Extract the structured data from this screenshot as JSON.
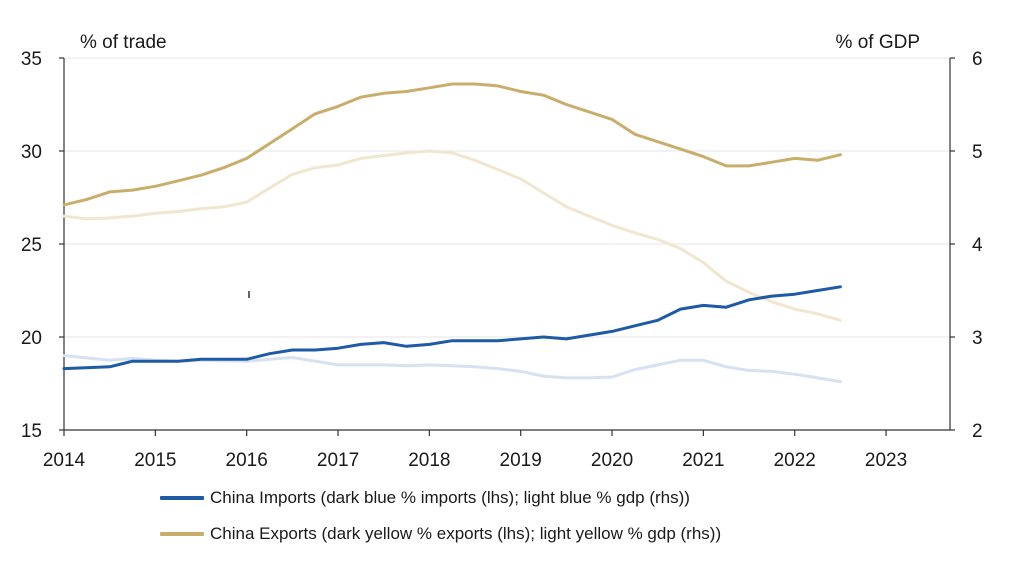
{
  "chart_data": {
    "type": "line",
    "ylabel_left": "% of trade",
    "ylabel_right": "% of GDP",
    "x_ticks": [
      "2014",
      "2015",
      "2016",
      "2017",
      "2018",
      "2019",
      "2020",
      "2021",
      "2022",
      "2023"
    ],
    "x_range": [
      2014,
      2023.7
    ],
    "ylim_left": [
      15,
      35
    ],
    "yticks_left": [
      "15",
      "20",
      "25",
      "30",
      "35"
    ],
    "ylim_right": [
      2,
      6
    ],
    "yticks_right": [
      "2",
      "3",
      "4",
      "5",
      "6"
    ],
    "grid": true,
    "series": [
      {
        "name": "China Imports % imports (lhs)",
        "axis": "left",
        "color": "#1f5aa6",
        "x": [
          2014.0,
          2014.5,
          2014.75,
          2015.0,
          2015.25,
          2015.5,
          2016.0,
          2016.25,
          2016.5,
          2016.75,
          2017.0,
          2017.25,
          2017.5,
          2017.75,
          2018.0,
          2018.25,
          2018.5,
          2018.75,
          2019.0,
          2019.25,
          2019.5,
          2019.75,
          2020.0,
          2020.25,
          2020.5,
          2020.75,
          2021.0,
          2021.25,
          2021.5,
          2021.75,
          2022.0,
          2022.25,
          2022.5
        ],
        "y": [
          18.3,
          18.4,
          18.7,
          18.7,
          18.7,
          18.8,
          18.8,
          19.1,
          19.3,
          19.3,
          19.4,
          19.6,
          19.7,
          19.5,
          19.6,
          19.8,
          19.8,
          19.8,
          19.9,
          20.0,
          19.9,
          20.1,
          20.3,
          20.6,
          20.9,
          21.5,
          21.7,
          21.6,
          22.0,
          22.2,
          22.3,
          22.5,
          22.7
        ]
      },
      {
        "name": "China Imports % gdp (rhs)",
        "axis": "right",
        "color": "#d6e1f2",
        "x": [
          2014.0,
          2014.5,
          2014.75,
          2015.0,
          2015.25,
          2015.5,
          2016.0,
          2016.25,
          2016.5,
          2016.75,
          2017.0,
          2017.25,
          2017.5,
          2017.75,
          2018.0,
          2018.25,
          2018.5,
          2018.75,
          2019.0,
          2019.25,
          2019.5,
          2019.75,
          2020.0,
          2020.25,
          2020.5,
          2020.75,
          2021.0,
          2021.25,
          2021.5,
          2021.75,
          2022.0,
          2022.25,
          2022.5
        ],
        "y": [
          2.8,
          2.75,
          2.77,
          2.75,
          2.74,
          2.75,
          2.74,
          2.76,
          2.78,
          2.74,
          2.7,
          2.7,
          2.7,
          2.69,
          2.7,
          2.69,
          2.68,
          2.66,
          2.63,
          2.58,
          2.56,
          2.56,
          2.57,
          2.65,
          2.7,
          2.75,
          2.75,
          2.68,
          2.64,
          2.63,
          2.6,
          2.56,
          2.52
        ]
      },
      {
        "name": "China Exports % exports (lhs)",
        "axis": "left",
        "color": "#c9ad6b",
        "x": [
          2014.0,
          2014.25,
          2014.5,
          2014.75,
          2015.0,
          2015.25,
          2015.5,
          2015.75,
          2016.0,
          2016.25,
          2016.5,
          2016.75,
          2017.0,
          2017.25,
          2017.5,
          2017.75,
          2018.0,
          2018.25,
          2018.5,
          2018.75,
          2019.0,
          2019.25,
          2019.5,
          2019.75,
          2020.0,
          2020.25,
          2020.5,
          2020.75,
          2021.0,
          2021.25,
          2021.5,
          2021.75,
          2022.0,
          2022.25,
          2022.5
        ],
        "y": [
          27.1,
          27.4,
          27.8,
          27.9,
          28.1,
          28.4,
          28.7,
          29.1,
          29.6,
          30.4,
          31.2,
          32.0,
          32.4,
          32.9,
          33.1,
          33.2,
          33.4,
          33.6,
          33.6,
          33.5,
          33.2,
          33.0,
          32.5,
          32.1,
          31.7,
          30.9,
          30.5,
          30.1,
          29.7,
          29.2,
          29.2,
          29.4,
          29.6,
          29.5,
          29.8
        ]
      },
      {
        "name": "China Exports % gdp (rhs)",
        "axis": "right",
        "color": "#f1e6cf",
        "x": [
          2014.0,
          2014.25,
          2014.5,
          2014.75,
          2015.0,
          2015.25,
          2015.5,
          2015.75,
          2016.0,
          2016.25,
          2016.5,
          2016.75,
          2017.0,
          2017.25,
          2017.5,
          2017.75,
          2018.0,
          2018.25,
          2018.5,
          2018.75,
          2019.0,
          2019.25,
          2019.5,
          2019.75,
          2020.0,
          2020.25,
          2020.5,
          2020.75,
          2021.0,
          2021.25,
          2021.5,
          2021.75,
          2022.0,
          2022.25,
          2022.5
        ],
        "y": [
          4.3,
          4.27,
          4.28,
          4.3,
          4.33,
          4.35,
          4.38,
          4.4,
          4.45,
          4.6,
          4.75,
          4.82,
          4.85,
          4.92,
          4.95,
          4.98,
          5.0,
          4.98,
          4.9,
          4.8,
          4.7,
          4.55,
          4.4,
          4.3,
          4.2,
          4.12,
          4.05,
          3.95,
          3.8,
          3.6,
          3.48,
          3.38,
          3.3,
          3.25,
          3.18
        ]
      }
    ]
  },
  "legend": {
    "imports": {
      "label": "China Imports (dark blue % imports (lhs); light blue % gdp (rhs))",
      "color": "#1f5aa6"
    },
    "exports": {
      "label": "China Exports (dark yellow % exports (lhs); light yellow % gdp (rhs))",
      "color": "#c9ad6b"
    }
  }
}
